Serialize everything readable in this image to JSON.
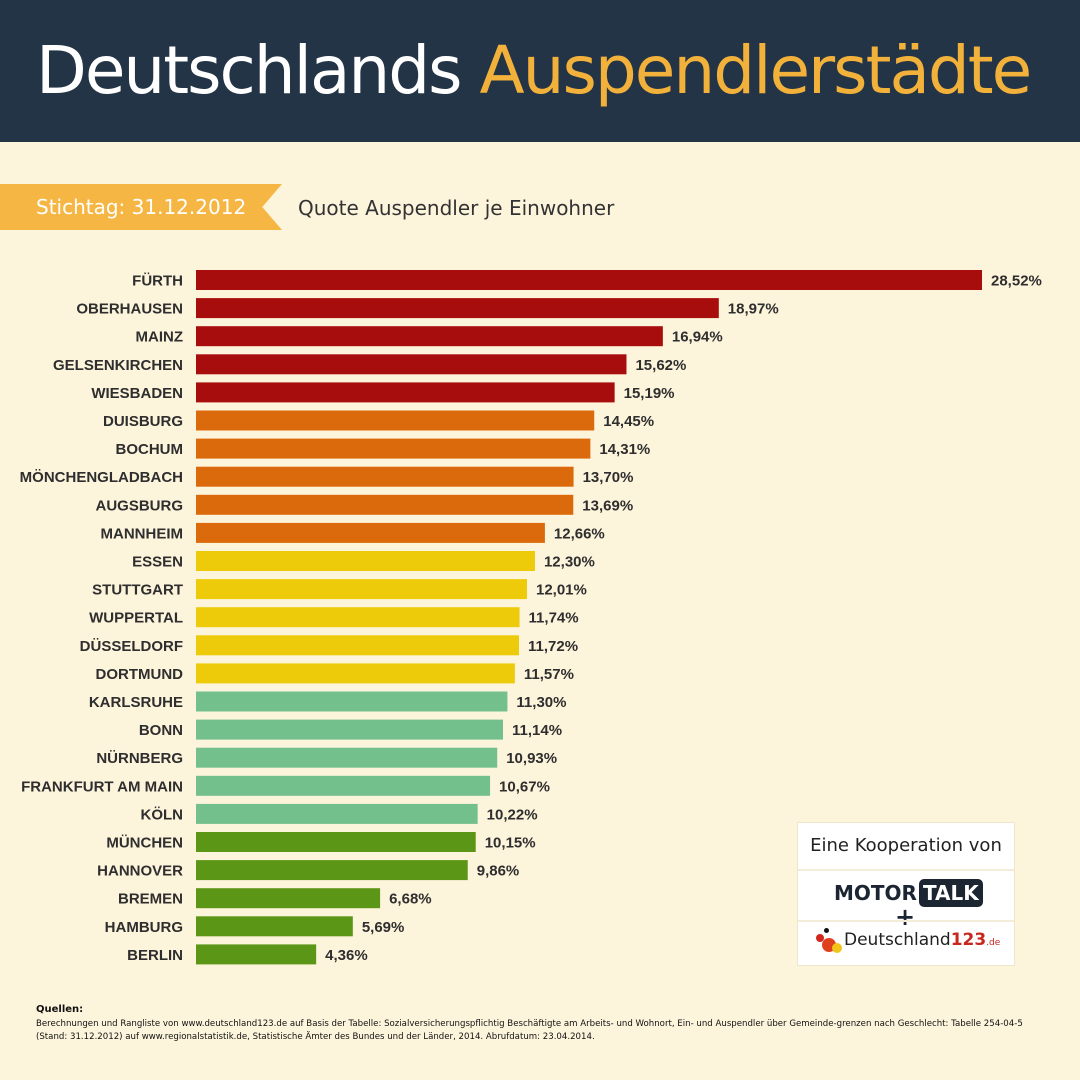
{
  "header": {
    "title_main": "Deutschlands",
    "title_accent": "Auspendlerstädte"
  },
  "ribbon": {
    "label": "Stichtag: 31.12.2012"
  },
  "subtitle": "Quote Auspendler je Einwohner",
  "colors": {
    "header_bg": "#233447",
    "accent": "#f2b13a",
    "background": "#fdf4dc",
    "tier_red": "#a80d0d",
    "tier_orange": "#db6a0c",
    "tier_yellow": "#eecb0a",
    "tier_lightgreen": "#74c08c",
    "tier_darkgreen": "#5c9617"
  },
  "chart_data": {
    "type": "bar",
    "orientation": "horizontal",
    "title": "Quote Auspendler je Einwohner",
    "xlabel": "",
    "ylabel": "",
    "unit": "%",
    "xlim": [
      0,
      28.52
    ],
    "grid": false,
    "categories": [
      "FÜRTH",
      "OBERHAUSEN",
      "MAINZ",
      "GELSENKIRCHEN",
      "WIESBADEN",
      "DUISBURG",
      "BOCHUM",
      "MÖNCHENGLADBACH",
      "AUGSBURG",
      "MANNHEIM",
      "ESSEN",
      "STUTTGART",
      "WUPPERTAL",
      "DÜSSELDORF",
      "DORTMUND",
      "KARLSRUHE",
      "BONN",
      "NÜRNBERG",
      "FRANKFURT AM MAIN",
      "KÖLN",
      "MÜNCHEN",
      "HANNOVER",
      "BREMEN",
      "HAMBURG",
      "BERLIN"
    ],
    "values": [
      28.52,
      18.97,
      16.94,
      15.62,
      15.19,
      14.45,
      14.31,
      13.7,
      13.69,
      12.66,
      12.3,
      12.01,
      11.74,
      11.72,
      11.57,
      11.3,
      11.14,
      10.93,
      10.67,
      10.22,
      10.15,
      9.86,
      6.68,
      5.69,
      4.36
    ],
    "value_labels": [
      "28,52%",
      "18,97%",
      "16,94%",
      "15,62%",
      "15,19%",
      "14,45%",
      "14,31%",
      "13,70%",
      "13,69%",
      "12,66%",
      "12,30%",
      "12,01%",
      "11,74%",
      "11,72%",
      "11,57%",
      "11,30%",
      "11,14%",
      "10,93%",
      "10,67%",
      "10,22%",
      "10,15%",
      "9,86%",
      "6,68%",
      "5,69%",
      "4,36%"
    ],
    "tiers": [
      "red",
      "red",
      "red",
      "red",
      "red",
      "orange",
      "orange",
      "orange",
      "orange",
      "orange",
      "yellow",
      "yellow",
      "yellow",
      "yellow",
      "yellow",
      "lightgreen",
      "lightgreen",
      "lightgreen",
      "lightgreen",
      "lightgreen",
      "darkgreen",
      "darkgreen",
      "darkgreen",
      "darkgreen",
      "darkgreen"
    ]
  },
  "cooperation": {
    "title": "Eine Kooperation von",
    "partner1_a": "MOTOR",
    "partner1_b": "TALK",
    "plus": "+",
    "partner2_name": "Deutschland",
    "partner2_num": "123",
    "partner2_tld": ".de"
  },
  "sources": {
    "heading": "Quellen:",
    "text": "Berechnungen und Rangliste von www.deutschland123.de auf Basis der Tabelle: Sozialversicherungspflichtig Beschäftigte am Arbeits- und Wohnort, Ein- und Auspendler über Gemeinde-grenzen nach Geschlecht: Tabelle 254-04-5 (Stand: 31.12.2012) auf www.regionalstatistik.de, Statistische Ämter des Bundes und der Länder, 2014. Abrufdatum: 23.04.2014."
  }
}
